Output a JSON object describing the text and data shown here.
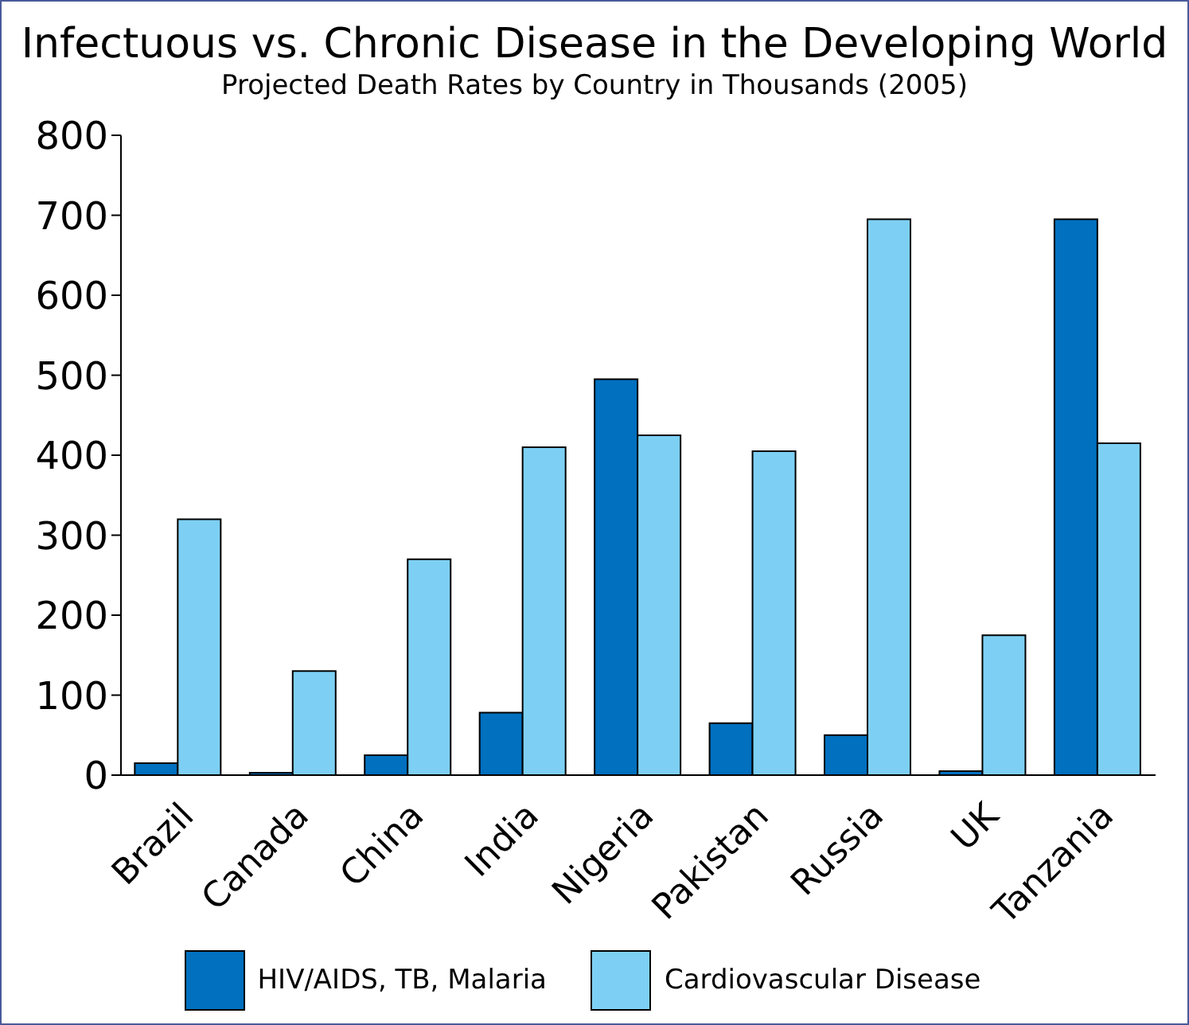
{
  "chart_data": {
    "type": "bar",
    "title": "Infectuous vs. Chronic Disease in the Developing World",
    "subtitle": "Projected Death Rates by Country in Thousands (2005)",
    "categories": [
      "Brazil",
      "Canada",
      "China",
      "India",
      "Nigeria",
      "Pakistan",
      "Russia",
      "UK",
      "Tanzania"
    ],
    "series": [
      {
        "name": "HIV/AIDS, TB, Malaria",
        "color": "#0070bf",
        "values": [
          15,
          3,
          25,
          78,
          495,
          65,
          50,
          5,
          695
        ]
      },
      {
        "name": "Cardiovascular Disease",
        "color": "#7dd0f4",
        "values": [
          320,
          130,
          270,
          410,
          425,
          405,
          695,
          175,
          415
        ]
      }
    ],
    "ylim": [
      0,
      800
    ],
    "yticks": [
      0,
      100,
      200,
      300,
      400,
      500,
      600,
      700,
      800
    ],
    "grid": false,
    "legend": "bottom"
  }
}
